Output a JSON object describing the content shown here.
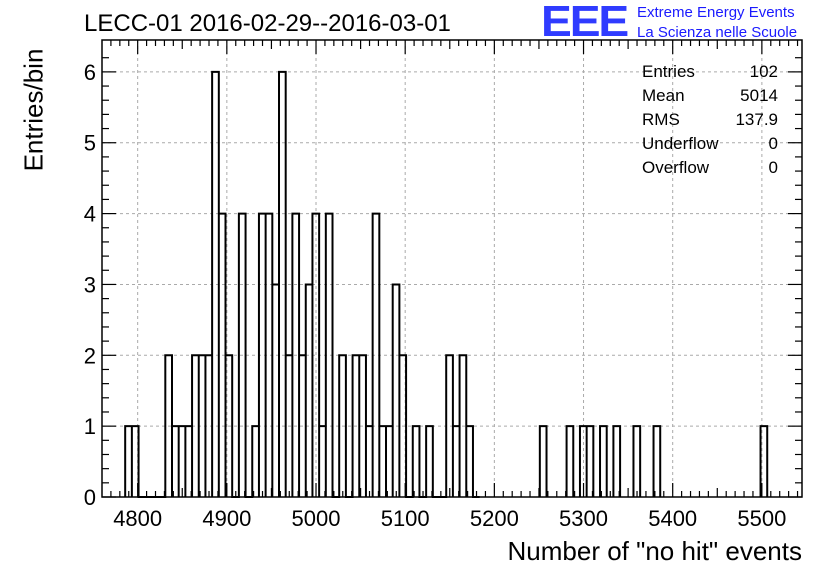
{
  "title": "LECC-01 2016-02-29--2016-03-01",
  "logo": {
    "mark": "EEE",
    "line1": "Extreme Energy Events",
    "line2": "La Scienza nelle Scuole",
    "color": "#2f3bff"
  },
  "stats": [
    {
      "label": "Entries",
      "value": "102"
    },
    {
      "label": "Mean",
      "value": "5014"
    },
    {
      "label": "RMS",
      "value": "137.9"
    },
    {
      "label": "Underflow",
      "value": "0"
    },
    {
      "label": "Overflow",
      "value": "0"
    }
  ],
  "chart_data": {
    "type": "bar",
    "style": "step-histogram",
    "xlabel": "Number of \"no hit\" events",
    "ylabel": "Entries/bin",
    "xlim": [
      4760,
      5545
    ],
    "ylim": [
      0,
      6.45
    ],
    "xticks": [
      4800,
      4900,
      5000,
      5100,
      5200,
      5300,
      5400,
      5500
    ],
    "yticks": [
      0,
      1,
      2,
      3,
      4,
      5,
      6
    ],
    "grid": true,
    "bin_width": 7.5,
    "bins": [
      [
        4786,
        1
      ],
      [
        4793.5,
        1
      ],
      [
        4801,
        0
      ],
      [
        4808.5,
        0
      ],
      [
        4816,
        0
      ],
      [
        4823.5,
        0
      ],
      [
        4831,
        2
      ],
      [
        4838.5,
        1
      ],
      [
        4846,
        1
      ],
      [
        4853.5,
        1
      ],
      [
        4861,
        2
      ],
      [
        4868.5,
        2
      ],
      [
        4876,
        2
      ],
      [
        4883.5,
        6
      ],
      [
        4891,
        4
      ],
      [
        4898.5,
        2
      ],
      [
        4906,
        0
      ],
      [
        4913.5,
        4
      ],
      [
        4921,
        0
      ],
      [
        4928.5,
        1
      ],
      [
        4936,
        4
      ],
      [
        4943.5,
        4
      ],
      [
        4951,
        3
      ],
      [
        4958.5,
        6
      ],
      [
        4966,
        2
      ],
      [
        4973.5,
        4
      ],
      [
        4981,
        2
      ],
      [
        4988.5,
        3
      ],
      [
        4996,
        4
      ],
      [
        5003.5,
        1
      ],
      [
        5011,
        4
      ],
      [
        5018.5,
        0
      ],
      [
        5026,
        2
      ],
      [
        5033.5,
        0
      ],
      [
        5041,
        2
      ],
      [
        5048.5,
        2
      ],
      [
        5056,
        1
      ],
      [
        5063.5,
        4
      ],
      [
        5071,
        1
      ],
      [
        5078.5,
        1
      ],
      [
        5086,
        3
      ],
      [
        5093.5,
        2
      ],
      [
        5101,
        0
      ],
      [
        5108.5,
        1
      ],
      [
        5116,
        0
      ],
      [
        5123.5,
        1
      ],
      [
        5131,
        0
      ],
      [
        5138.5,
        0
      ],
      [
        5146,
        2
      ],
      [
        5153.5,
        1
      ],
      [
        5161,
        2
      ],
      [
        5168.5,
        1
      ],
      [
        5176,
        0
      ],
      [
        5251,
        1
      ],
      [
        5281,
        1
      ],
      [
        5296,
        1
      ],
      [
        5303.5,
        1
      ],
      [
        5318.5,
        1
      ],
      [
        5333.5,
        1
      ],
      [
        5356,
        1
      ],
      [
        5378.5,
        1
      ],
      [
        5498.5,
        1
      ]
    ]
  }
}
